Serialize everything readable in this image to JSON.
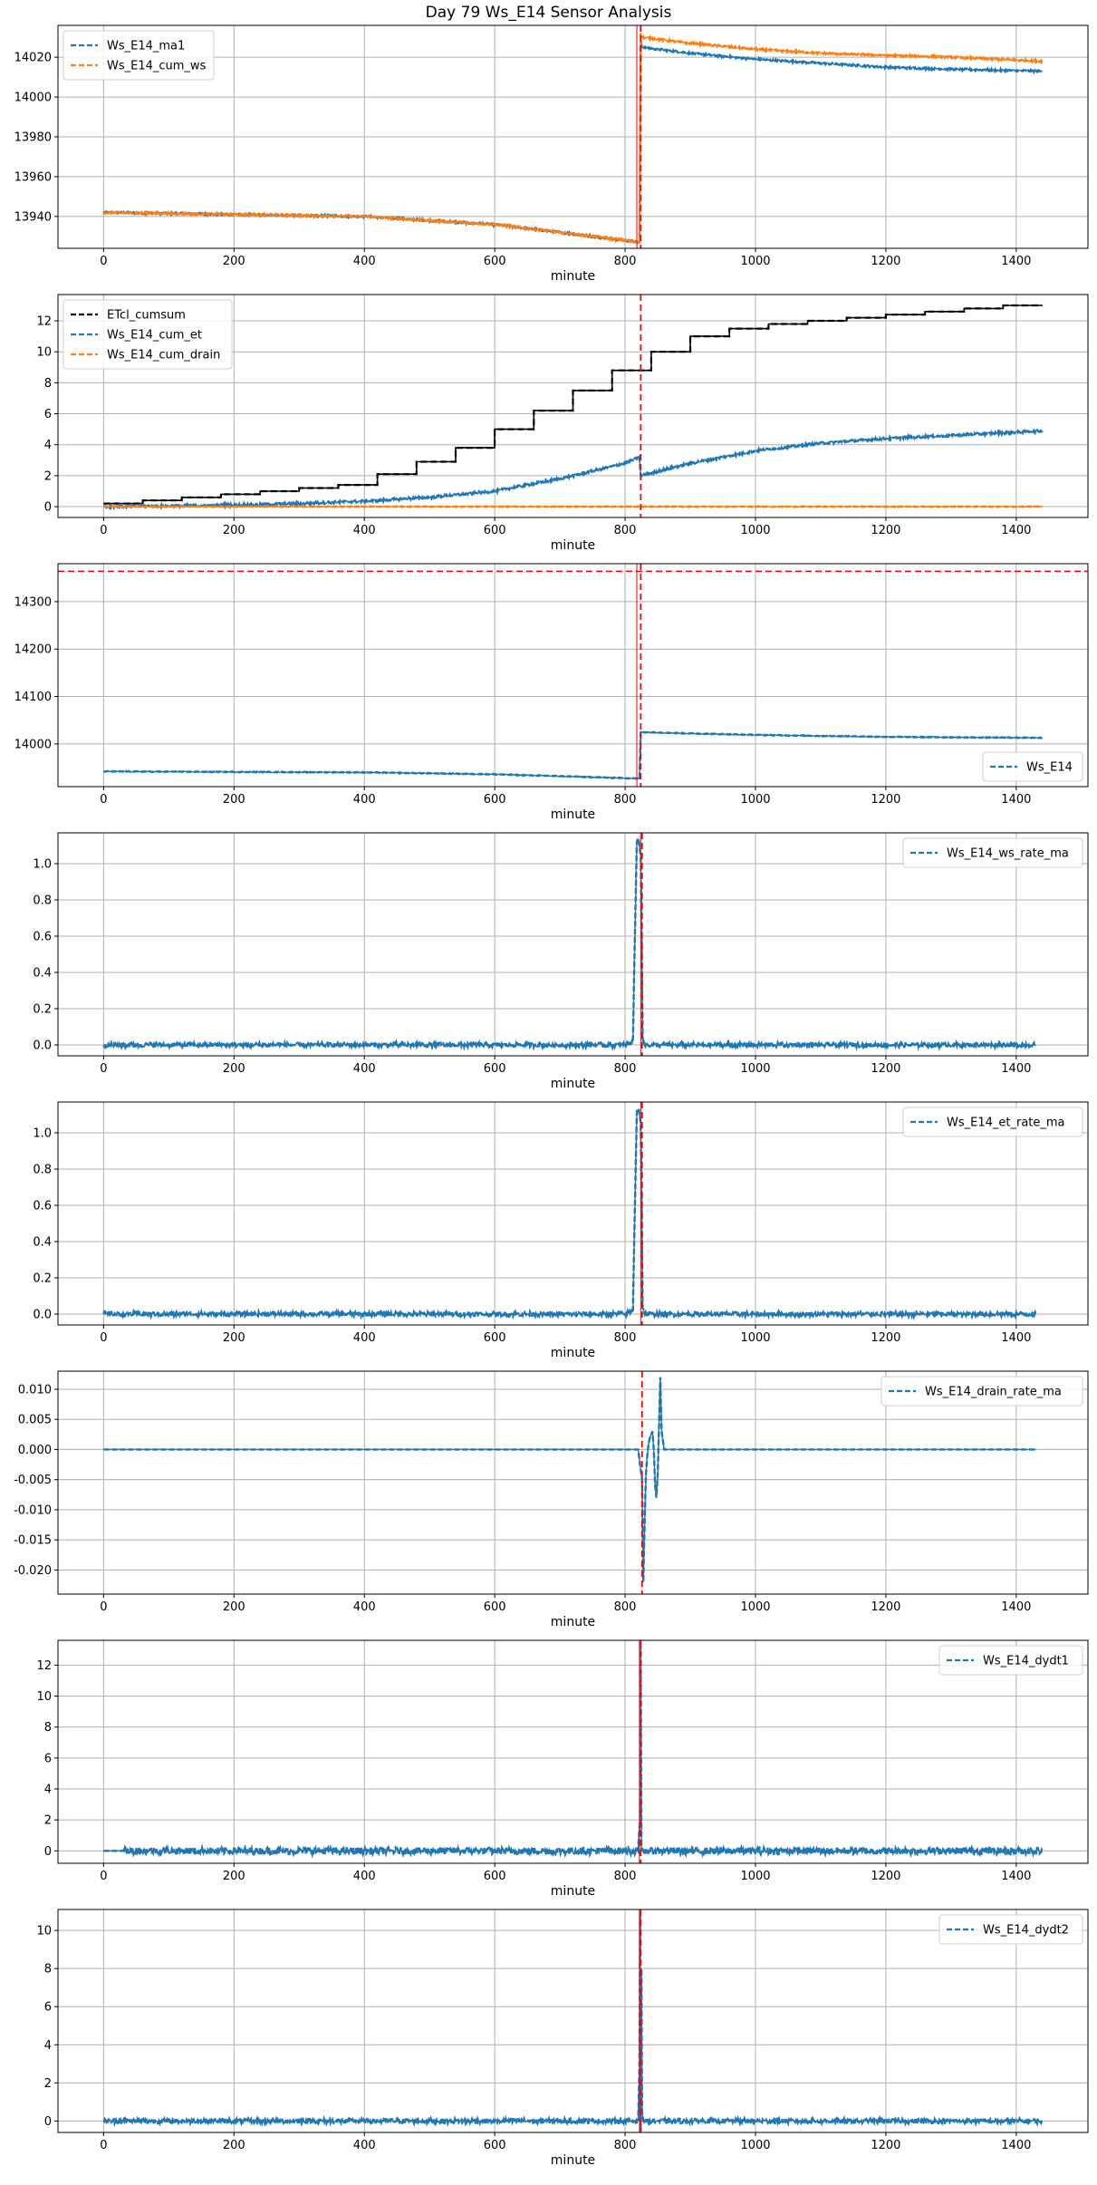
{
  "figure": {
    "title": "Day 79 Ws_E14 Sensor Analysis"
  },
  "colors": {
    "blue": "#1f77b4",
    "orange": "#ff7f0e",
    "black": "#000000",
    "red": "#ff0000",
    "grid": "#b0b0b0"
  },
  "chart_data": [
    {
      "type": "line",
      "xlabel": "minute",
      "xlim": [
        -70,
        1510
      ],
      "ylim": [
        13924,
        14036
      ],
      "xticks": [
        0,
        200,
        400,
        600,
        800,
        1000,
        1200,
        1400
      ],
      "yticks": [
        13940,
        13960,
        13980,
        14000,
        14020
      ],
      "yticklabels": [
        "13940",
        "13960",
        "13980",
        "14000",
        "14020"
      ],
      "legend": "upper-left",
      "vlines": [
        {
          "x": 824,
          "style": "dashed"
        },
        {
          "x": 818,
          "style": "solid"
        }
      ],
      "hlines": [],
      "series": [
        {
          "name": "Ws_E14_ma1",
          "color": "blue",
          "x": [
            0,
            200,
            400,
            600,
            700,
            800,
            822,
            824,
            826,
            900,
            1000,
            1100,
            1200,
            1300,
            1440
          ],
          "y": [
            13942,
            13941,
            13940,
            13936,
            13932,
            13928,
            13927,
            14028,
            14025,
            14022,
            14019,
            14017,
            14015,
            14014,
            14013
          ],
          "jitter": 0.5
        },
        {
          "name": "Ws_E14_cum_ws",
          "color": "orange",
          "x": [
            0,
            200,
            400,
            600,
            700,
            800,
            822,
            824,
            826,
            900,
            1000,
            1100,
            1200,
            1300,
            1440
          ],
          "y": [
            13942,
            13941,
            13940,
            13936,
            13932,
            13928,
            13927,
            14032,
            14030,
            14027,
            14024,
            14022,
            14021,
            14020,
            14018
          ],
          "jitter": 0.5
        }
      ]
    },
    {
      "type": "line",
      "xlabel": "minute",
      "xlim": [
        -70,
        1510
      ],
      "ylim": [
        -0.7,
        13.7
      ],
      "xticks": [
        0,
        200,
        400,
        600,
        800,
        1000,
        1200,
        1400
      ],
      "yticks": [
        0,
        2,
        4,
        6,
        8,
        10,
        12
      ],
      "yticklabels": [
        "0",
        "2",
        "4",
        "6",
        "8",
        "10",
        "12"
      ],
      "legend": "upper-left",
      "vlines": [
        {
          "x": 824,
          "style": "dashed"
        }
      ],
      "hlines": [],
      "series": [
        {
          "name": "ETcl_cumsum",
          "color": "black",
          "step": true,
          "x": [
            0,
            60,
            120,
            180,
            240,
            300,
            360,
            420,
            480,
            540,
            600,
            660,
            720,
            780,
            840,
            900,
            960,
            1020,
            1080,
            1140,
            1200,
            1260,
            1320,
            1380,
            1440
          ],
          "y": [
            0.2,
            0.4,
            0.6,
            0.8,
            1.0,
            1.2,
            1.4,
            2.1,
            2.9,
            3.8,
            5.0,
            6.2,
            7.5,
            8.8,
            10.0,
            11.0,
            11.5,
            11.8,
            12.0,
            12.2,
            12.4,
            12.6,
            12.8,
            13.0,
            13.0
          ]
        },
        {
          "name": "Ws_E14_cum_et",
          "color": "blue",
          "x": [
            0,
            100,
            200,
            300,
            400,
            500,
            600,
            700,
            800,
            822,
            824,
            900,
            1000,
            1100,
            1200,
            1300,
            1440
          ],
          "y": [
            0.0,
            0.05,
            0.1,
            0.2,
            0.35,
            0.6,
            1.0,
            1.8,
            2.8,
            3.2,
            2.0,
            2.8,
            3.6,
            4.1,
            4.4,
            4.6,
            4.9
          ],
          "jitter": 0.08
        },
        {
          "name": "Ws_E14_cum_drain",
          "color": "orange",
          "x": [
            0,
            1440
          ],
          "y": [
            0,
            0
          ],
          "jitter": 0.02
        }
      ]
    },
    {
      "type": "line",
      "xlabel": "minute",
      "xlim": [
        -70,
        1510
      ],
      "ylim": [
        13910,
        14380
      ],
      "xticks": [
        0,
        200,
        400,
        600,
        800,
        1000,
        1200,
        1400
      ],
      "yticks": [
        14000,
        14100,
        14200,
        14300
      ],
      "yticklabels": [
        "14000",
        "14100",
        "14200",
        "14300"
      ],
      "legend": "lower-right",
      "vlines": [
        {
          "x": 824,
          "style": "dashed"
        },
        {
          "x": 818,
          "style": "solid"
        }
      ],
      "hlines": [
        {
          "y": 14364,
          "style": "dashed"
        }
      ],
      "series": [
        {
          "name": "Ws_E14",
          "color": "blue",
          "x": [
            0,
            200,
            400,
            600,
            700,
            800,
            822,
            824,
            826,
            900,
            1000,
            1100,
            1200,
            1300,
            1440
          ],
          "y": [
            13942,
            13941,
            13940,
            13936,
            13932,
            13928,
            13927,
            14026,
            14025,
            14022,
            14019,
            14017,
            14015,
            14014,
            14013
          ],
          "jitter": 0.8
        }
      ]
    },
    {
      "type": "line",
      "xlabel": "minute",
      "xlim": [
        -70,
        1510
      ],
      "ylim": [
        -0.06,
        1.17
      ],
      "xticks": [
        0,
        200,
        400,
        600,
        800,
        1000,
        1200,
        1400
      ],
      "yticks": [
        0.0,
        0.2,
        0.4,
        0.6,
        0.8,
        1.0
      ],
      "yticklabels": [
        "0.0",
        "0.2",
        "0.4",
        "0.6",
        "0.8",
        "1.0"
      ],
      "legend": "upper-right",
      "vlines": [
        {
          "x": 824,
          "style": "solid"
        },
        {
          "x": 826,
          "style": "dashed"
        }
      ],
      "hlines": [],
      "series": [
        {
          "name": "Ws_E14_ws_rate_ma",
          "color": "blue",
          "x": [
            0,
            200,
            400,
            600,
            800,
            812,
            815,
            818,
            821,
            824,
            827,
            830,
            1000,
            1200,
            1430
          ],
          "y": [
            0,
            0,
            0,
            0,
            0,
            0.02,
            0.6,
            1.12,
            1.13,
            1.05,
            0.03,
            0,
            0,
            0,
            0
          ],
          "jitter": 0.012
        }
      ]
    },
    {
      "type": "line",
      "xlabel": "minute",
      "xlim": [
        -70,
        1510
      ],
      "ylim": [
        -0.06,
        1.17
      ],
      "xticks": [
        0,
        200,
        400,
        600,
        800,
        1000,
        1200,
        1400
      ],
      "yticks": [
        0.0,
        0.2,
        0.4,
        0.6,
        0.8,
        1.0
      ],
      "yticklabels": [
        "0.0",
        "0.2",
        "0.4",
        "0.6",
        "0.8",
        "1.0"
      ],
      "legend": "upper-right",
      "vlines": [
        {
          "x": 824,
          "style": "solid"
        },
        {
          "x": 826,
          "style": "dashed"
        }
      ],
      "hlines": [],
      "series": [
        {
          "name": "Ws_E14_et_rate_ma",
          "color": "blue",
          "x": [
            0,
            200,
            400,
            600,
            800,
            812,
            815,
            818,
            821,
            824,
            827,
            830,
            1000,
            1200,
            1430
          ],
          "y": [
            0,
            0,
            0,
            0,
            0,
            0.02,
            0.6,
            1.12,
            1.13,
            1.05,
            0.03,
            0,
            0,
            0,
            0
          ],
          "jitter": 0.012
        }
      ]
    },
    {
      "type": "line",
      "xlabel": "minute",
      "xlim": [
        -70,
        1510
      ],
      "ylim": [
        -0.024,
        0.013
      ],
      "xticks": [
        0,
        200,
        400,
        600,
        800,
        1000,
        1200,
        1400
      ],
      "yticks": [
        -0.02,
        -0.015,
        -0.01,
        -0.005,
        0.0,
        0.005,
        0.01
      ],
      "yticklabels": [
        "-0.020",
        "-0.015",
        "-0.010",
        "-0.005",
        "0.000",
        "0.005",
        "0.010"
      ],
      "legend": "upper-right",
      "vlines": [
        {
          "x": 826,
          "style": "dashed"
        }
      ],
      "hlines": [],
      "series": [
        {
          "name": "Ws_E14_drain_rate_ma",
          "color": "blue",
          "x": [
            0,
            400,
            820,
            826,
            828,
            830,
            832,
            834,
            836,
            838,
            840,
            842,
            844,
            846,
            848,
            850,
            852,
            854,
            856,
            860,
            1000,
            1430
          ],
          "y": [
            0,
            0,
            0,
            -0.005,
            -0.022,
            -0.012,
            -0.004,
            -0.001,
            0.001,
            0.002,
            0.0025,
            0.003,
            0.0,
            -0.006,
            -0.008,
            -0.004,
            0.004,
            0.012,
            0.003,
            0,
            0,
            0
          ]
        }
      ]
    },
    {
      "type": "line",
      "xlabel": "minute",
      "xlim": [
        -70,
        1510
      ],
      "ylim": [
        -0.8,
        13.6
      ],
      "xticks": [
        0,
        200,
        400,
        600,
        800,
        1000,
        1200,
        1400
      ],
      "yticks": [
        0,
        2,
        4,
        6,
        8,
        10,
        12
      ],
      "yticklabels": [
        "0",
        "2",
        "4",
        "6",
        "8",
        "10",
        "12"
      ],
      "legend": "upper-right",
      "vlines": [
        {
          "x": 824,
          "style": "dashed"
        },
        {
          "x": 822,
          "style": "solid"
        }
      ],
      "hlines": [],
      "series": [
        {
          "name": "Ws_E14_dydt1",
          "color": "blue",
          "x": [
            0,
            30,
            800,
            820,
            823,
            824,
            825,
            828,
            1440
          ],
          "y": [
            0,
            0,
            0,
            0,
            2.0,
            13.2,
            0,
            0,
            0
          ],
          "jitter": 0.22,
          "jitter_start": 30
        }
      ]
    },
    {
      "type": "line",
      "xlabel": "minute",
      "xlim": [
        -70,
        1510
      ],
      "ylim": [
        -0.6,
        11.1
      ],
      "xticks": [
        0,
        200,
        400,
        600,
        800,
        1000,
        1200,
        1400
      ],
      "yticks": [
        0,
        2,
        4,
        6,
        8,
        10
      ],
      "yticklabels": [
        "0",
        "2",
        "4",
        "6",
        "8",
        "10"
      ],
      "legend": "upper-right",
      "vlines": [
        {
          "x": 824,
          "style": "dashed"
        },
        {
          "x": 822,
          "style": "solid"
        }
      ],
      "hlines": [],
      "series": [
        {
          "name": "Ws_E14_dydt2",
          "color": "blue",
          "x": [
            0,
            800,
            820,
            822,
            823,
            824,
            825,
            826,
            828,
            1440
          ],
          "y": [
            0,
            0,
            0,
            3.0,
            10.8,
            -0.5,
            8.0,
            0.5,
            0,
            0
          ],
          "jitter": 0.12
        }
      ]
    }
  ]
}
